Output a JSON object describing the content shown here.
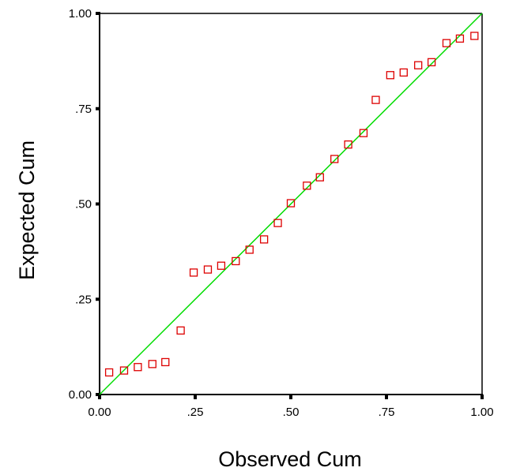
{
  "chart_data": {
    "type": "scatter",
    "title": "",
    "xlabel": "Observed Cum",
    "ylabel": "Expected Cum",
    "xlim": [
      0,
      1
    ],
    "ylim": [
      0,
      1
    ],
    "grid": false,
    "x_ticks": [
      {
        "value": 0,
        "label": "0.00"
      },
      {
        "value": 0.25,
        "label": ".25"
      },
      {
        "value": 0.5,
        "label": ".50"
      },
      {
        "value": 0.75,
        "label": ".75"
      },
      {
        "value": 1,
        "label": "1.00"
      }
    ],
    "y_ticks": [
      {
        "value": 0,
        "label": "0.00"
      },
      {
        "value": 0.25,
        "label": ".25"
      },
      {
        "value": 0.5,
        "label": ".50"
      },
      {
        "value": 0.75,
        "label": ".75"
      },
      {
        "value": 1,
        "label": "1.00"
      }
    ],
    "reference_line": {
      "from": [
        0,
        0
      ],
      "to": [
        1,
        1
      ],
      "color": "#00dd00"
    },
    "marker_color": "#dd0000",
    "points": [
      {
        "x": 0.025,
        "y": 0.058
      },
      {
        "x": 0.064,
        "y": 0.063
      },
      {
        "x": 0.1,
        "y": 0.072
      },
      {
        "x": 0.138,
        "y": 0.08
      },
      {
        "x": 0.172,
        "y": 0.085
      },
      {
        "x": 0.212,
        "y": 0.168
      },
      {
        "x": 0.246,
        "y": 0.32
      },
      {
        "x": 0.283,
        "y": 0.328
      },
      {
        "x": 0.318,
        "y": 0.338
      },
      {
        "x": 0.356,
        "y": 0.35
      },
      {
        "x": 0.392,
        "y": 0.38
      },
      {
        "x": 0.43,
        "y": 0.407
      },
      {
        "x": 0.466,
        "y": 0.45
      },
      {
        "x": 0.5,
        "y": 0.502
      },
      {
        "x": 0.542,
        "y": 0.548
      },
      {
        "x": 0.576,
        "y": 0.57
      },
      {
        "x": 0.614,
        "y": 0.618
      },
      {
        "x": 0.65,
        "y": 0.656
      },
      {
        "x": 0.69,
        "y": 0.686
      },
      {
        "x": 0.722,
        "y": 0.773
      },
      {
        "x": 0.76,
        "y": 0.838
      },
      {
        "x": 0.795,
        "y": 0.845
      },
      {
        "x": 0.833,
        "y": 0.864
      },
      {
        "x": 0.868,
        "y": 0.872
      },
      {
        "x": 0.907,
        "y": 0.922
      },
      {
        "x": 0.942,
        "y": 0.934
      },
      {
        "x": 0.98,
        "y": 0.941
      }
    ]
  }
}
